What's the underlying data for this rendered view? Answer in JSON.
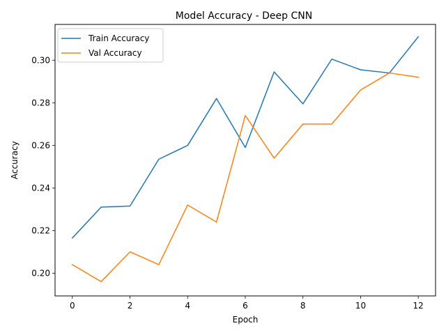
{
  "chart_data": {
    "type": "line",
    "title": "Model Accuracy - Deep CNN",
    "xlabel": "Epoch",
    "ylabel": "Accuracy",
    "x": [
      0,
      1,
      2,
      3,
      4,
      5,
      6,
      7,
      8,
      9,
      10,
      11,
      12
    ],
    "xlim": [
      -0.6,
      12.6
    ],
    "ylim": [
      0.1893,
      0.3168
    ],
    "xticks": [
      0,
      2,
      4,
      6,
      8,
      10,
      12
    ],
    "xtick_labels": [
      "0",
      "2",
      "4",
      "6",
      "8",
      "10",
      "12"
    ],
    "yticks": [
      0.2,
      0.22,
      0.24,
      0.26,
      0.28,
      0.3
    ],
    "ytick_labels": [
      "0.20",
      "0.22",
      "0.24",
      "0.26",
      "0.28",
      "0.30"
    ],
    "grid": false,
    "legend_position": "top-left",
    "series": [
      {
        "name": "Train Accuracy",
        "color": "#1f77b4",
        "values": [
          0.2165,
          0.231,
          0.2315,
          0.2535,
          0.26,
          0.282,
          0.259,
          0.2945,
          0.2795,
          0.3005,
          0.2955,
          0.294,
          0.311
        ]
      },
      {
        "name": "Val Accuracy",
        "color": "#ff7f0e",
        "values": [
          0.204,
          0.196,
          0.21,
          0.204,
          0.232,
          0.224,
          0.274,
          0.254,
          0.27,
          0.27,
          0.286,
          0.294,
          0.292
        ]
      }
    ]
  }
}
